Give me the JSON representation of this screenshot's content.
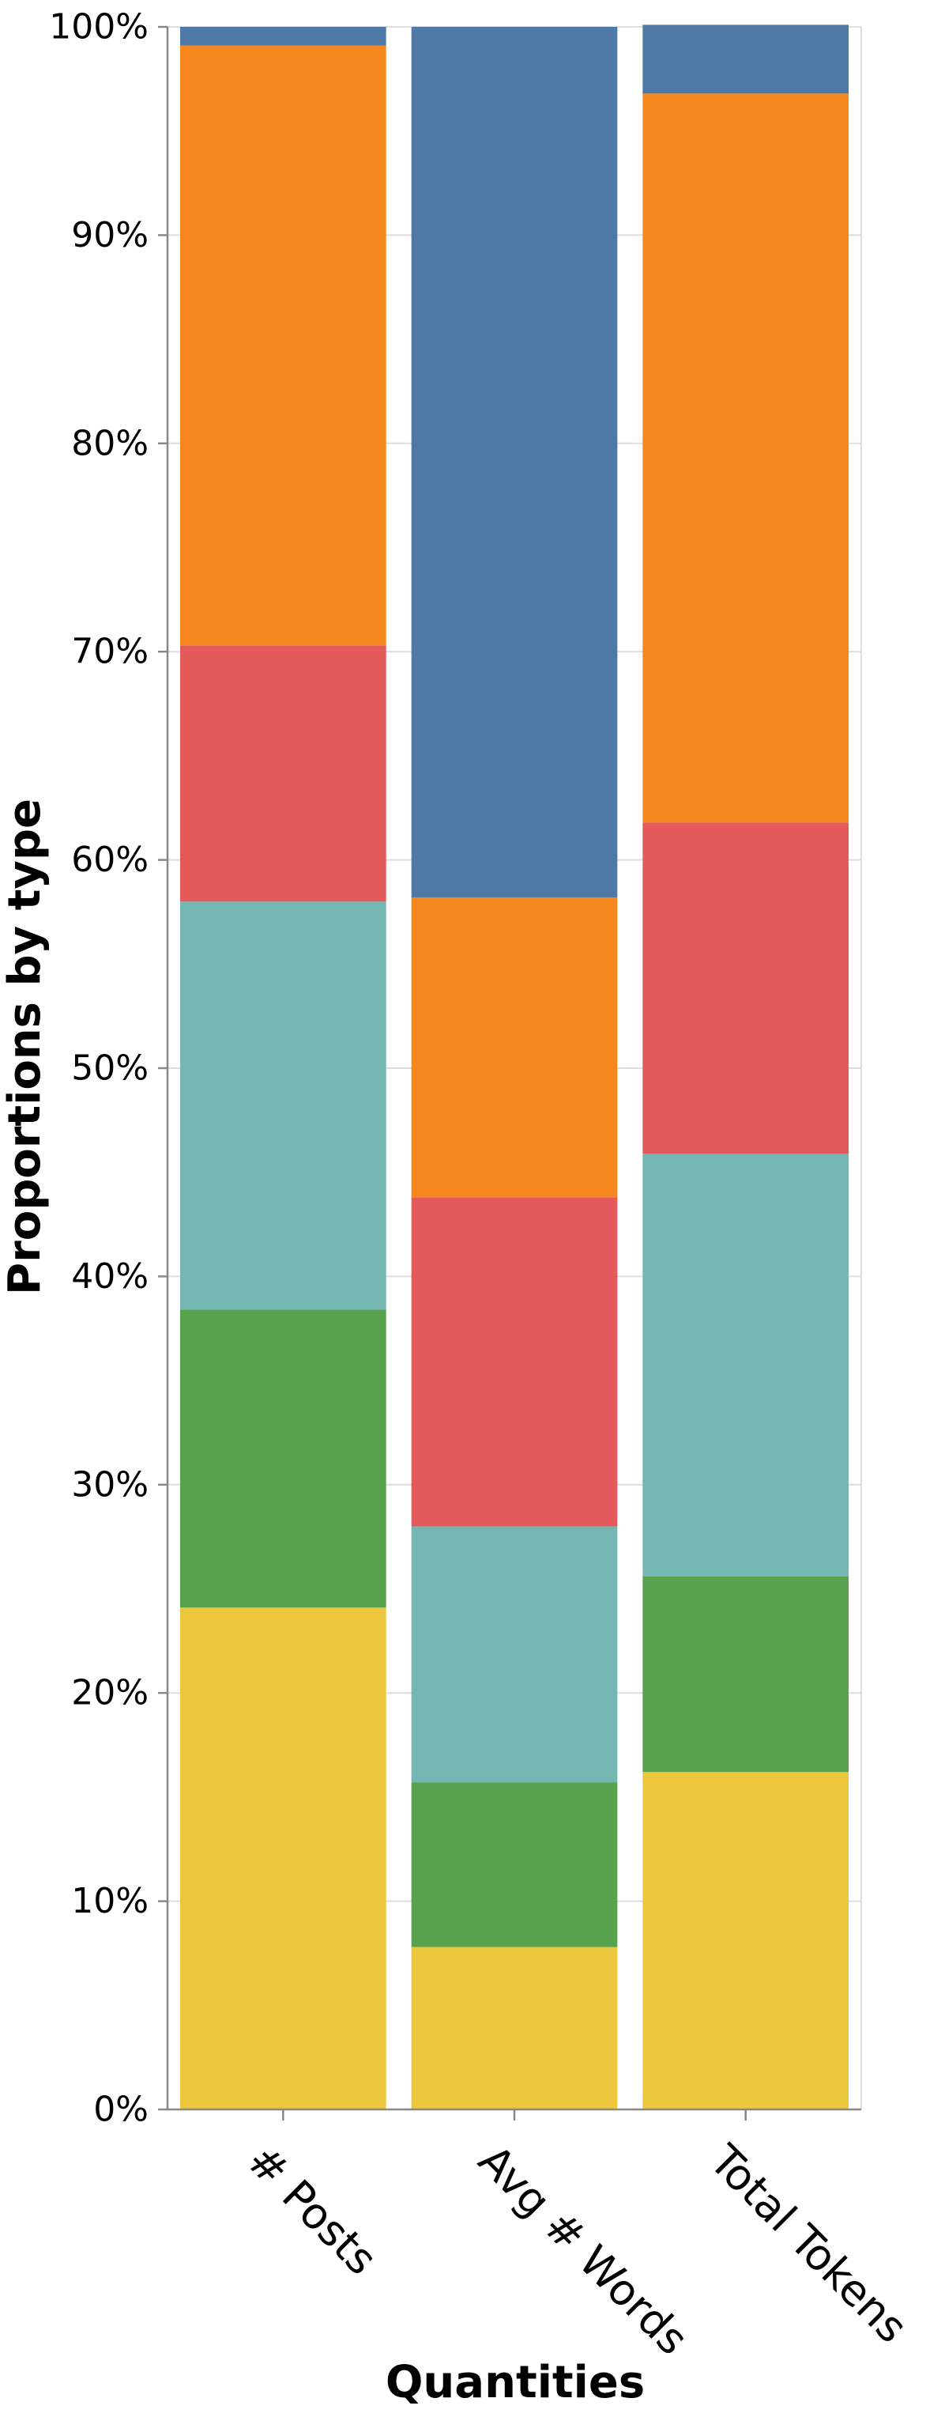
{
  "chart_data": {
    "type": "bar",
    "stacked": "normalize",
    "categories": [
      "# Posts",
      "Avg # Words",
      "Total Tokens"
    ],
    "xlabel": "Quantities",
    "ylabel": "Proportions by type",
    "ylim": [
      0,
      1
    ],
    "y_ticks": [
      "0%",
      "10%",
      "20%",
      "30%",
      "40%",
      "50%",
      "60%",
      "70%",
      "80%",
      "90%",
      "100%"
    ],
    "grid": true,
    "legend": "none",
    "series": [
      {
        "color": "#ECC73D",
        "values": [
          0.241,
          0.078,
          0.162
        ]
      },
      {
        "color": "#57A24C",
        "values": [
          0.143,
          0.079,
          0.094
        ]
      },
      {
        "color": "#74B6B1",
        "values": [
          0.196,
          0.123,
          0.203
        ]
      },
      {
        "color": "#E45A5A",
        "values": [
          0.123,
          0.158,
          0.159
        ]
      },
      {
        "color": "#F5871C",
        "values": [
          0.288,
          0.144,
          0.35
        ]
      },
      {
        "color": "#4E79A7",
        "values": [
          0.009,
          0.418,
          0.033
        ]
      }
    ]
  }
}
